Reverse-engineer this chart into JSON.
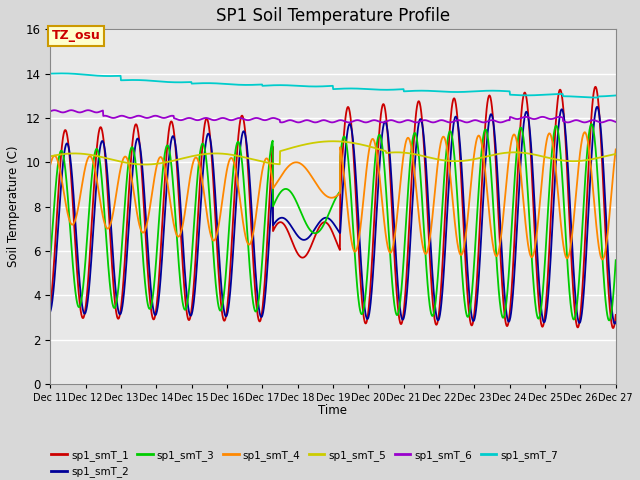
{
  "title": "SP1 Soil Temperature Profile",
  "xlabel": "Time",
  "ylabel": "Soil Temperature (C)",
  "ylim": [
    0,
    16
  ],
  "yticks": [
    0,
    2,
    4,
    6,
    8,
    10,
    12,
    14,
    16
  ],
  "annotation_text": "TZ_osu",
  "annotation_color": "#cc0000",
  "annotation_bg": "#ffffcc",
  "annotation_border": "#cc9900",
  "series_colors": {
    "sp1_smT_1": "#cc0000",
    "sp1_smT_2": "#000099",
    "sp1_smT_3": "#00cc00",
    "sp1_smT_4": "#ff8800",
    "sp1_smT_5": "#cccc00",
    "sp1_smT_6": "#9900cc",
    "sp1_smT_7": "#00cccc"
  },
  "bg_color": "#e8e8e8",
  "grid_color": "#ffffff",
  "x_start": 11,
  "x_end": 27,
  "x_ticks": [
    11,
    12,
    13,
    14,
    15,
    16,
    17,
    18,
    19,
    20,
    21,
    22,
    23,
    24,
    25,
    26,
    27
  ],
  "x_tick_labels": [
    "Dec 11",
    "Dec 12",
    "Dec 13",
    "Dec 14",
    "Dec 15",
    "Dec 16",
    "Dec 17",
    "Dec 18",
    "Dec 19",
    "Dec 20",
    "Dec 21",
    "Dec 22",
    "Dec 23",
    "Dec 24",
    "Dec 25",
    "Dec 26",
    "Dec 27"
  ],
  "linewidth": 1.3
}
